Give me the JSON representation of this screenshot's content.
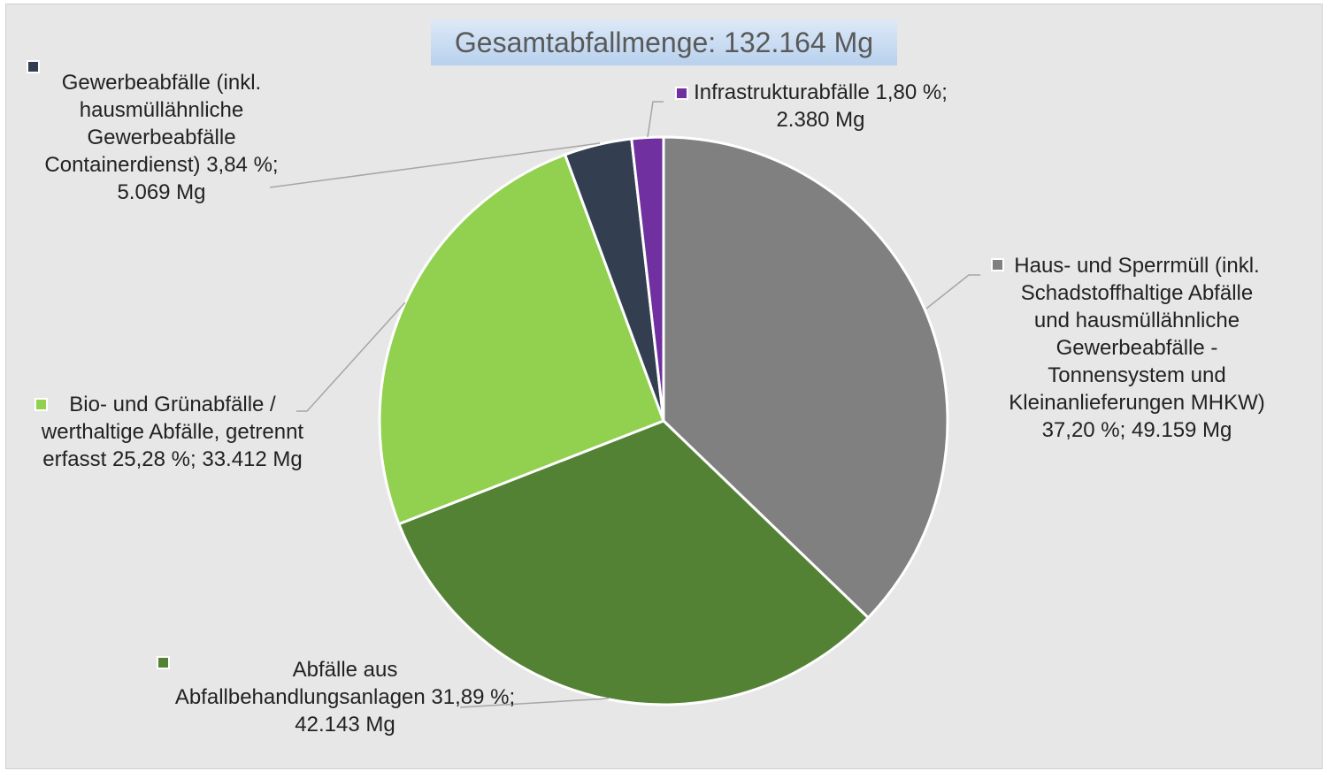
{
  "chart_data": {
    "type": "pie",
    "title": "Gesamtabfallmenge:  132.164 Mg",
    "categories": [
      "Haus- und Sperrmüll (inkl. Schadstoffhaltige Abfälle und hausmüllähnliche Gewerbeabfälle - Tonnensystem und Kleinanlieferungen MHKW)",
      "Abfälle aus Abfallbehandlungsanlagen",
      "Bio- und Grünabfälle / werthaltige Abfälle, getrennt erfasst",
      "Gewerbeabfälle (inkl. hausmüllähnliche Gewerbeabfälle Containerdienst)",
      "Infrastrukturabfälle"
    ],
    "values": [
      37.2,
      31.89,
      25.28,
      3.84,
      1.8
    ],
    "value_labels": [
      "37,20 %; 49.159 Mg",
      "31,89 %; 42.143 Mg",
      "25,28 %; 33.412 Mg",
      "3,84 %; 5.069 Mg",
      "1,80 %; 2.380 Mg"
    ],
    "colors": [
      "#808080",
      "#548235",
      "#92d050",
      "#333f50",
      "#7030a0"
    ]
  }
}
